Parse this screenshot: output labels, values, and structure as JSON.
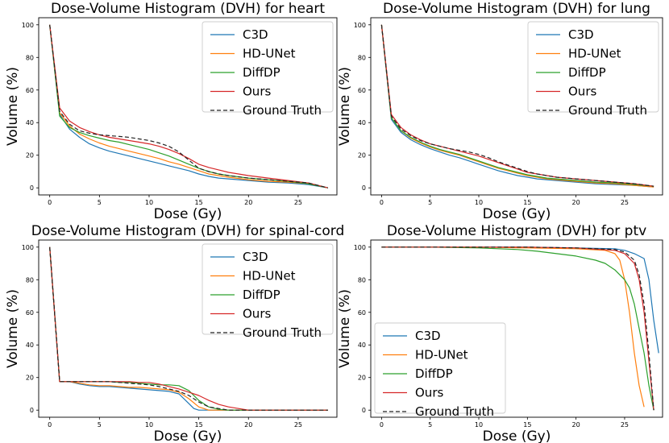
{
  "chart_data": [
    {
      "type": "line",
      "title": "Dose-Volume Histogram (DVH) for heart",
      "xlabel": "Dose (Gy)",
      "ylabel": "Volume (%)",
      "xlim": [
        0,
        28
      ],
      "ylim": [
        0,
        100
      ],
      "xticks": [
        "0",
        "5",
        "10",
        "15",
        "20",
        "25"
      ],
      "yticks": [
        "0",
        "20",
        "40",
        "60",
        "80",
        "100"
      ],
      "legend_position": "top-right",
      "series": [
        {
          "name": "C3D",
          "color": "#1f77b4",
          "dash": "",
          "x": [
            0,
            1,
            2,
            3,
            4,
            5,
            6,
            7,
            8,
            9,
            10,
            11,
            12,
            13,
            14,
            15,
            16,
            17,
            18,
            20,
            22,
            24,
            26,
            28
          ],
          "y": [
            100,
            45,
            36,
            31,
            27,
            24.5,
            22.5,
            21,
            19.5,
            18,
            16.5,
            15,
            13.5,
            12,
            10.5,
            8.5,
            7,
            6,
            5.5,
            4.5,
            3.5,
            3,
            2,
            0
          ]
        },
        {
          "name": "HD-UNet",
          "color": "#ff7f0e",
          "dash": "",
          "x": [
            0,
            1,
            2,
            3,
            4,
            5,
            6,
            7,
            8,
            9,
            10,
            11,
            12,
            13,
            14,
            15,
            16,
            17,
            18,
            20,
            22,
            24,
            26,
            28
          ],
          "y": [
            100,
            46,
            38,
            33,
            30,
            27.5,
            25.5,
            24,
            22.5,
            21,
            19.5,
            18,
            16,
            14.5,
            12.5,
            10.5,
            8.5,
            7.5,
            6.5,
            5,
            4,
            3.5,
            2.5,
            0
          ]
        },
        {
          "name": "DiffDP",
          "color": "#2ca02c",
          "dash": "",
          "x": [
            0,
            1,
            2,
            3,
            4,
            5,
            6,
            7,
            8,
            9,
            10,
            11,
            12,
            13,
            14,
            15,
            16,
            17,
            18,
            20,
            22,
            24,
            26,
            28
          ],
          "y": [
            100,
            44,
            37,
            34,
            32,
            30.5,
            29,
            28,
            26.5,
            25,
            23.5,
            21.5,
            19.5,
            17,
            14.5,
            12,
            10,
            8.5,
            7.5,
            6,
            5,
            4,
            2.5,
            0
          ]
        },
        {
          "name": "Ours",
          "color": "#d62728",
          "dash": "",
          "x": [
            0,
            1,
            2,
            3,
            4,
            5,
            6,
            7,
            8,
            9,
            10,
            11,
            12,
            13,
            14,
            15,
            16,
            17,
            18,
            20,
            22,
            24,
            26,
            28
          ],
          "y": [
            100,
            49,
            41,
            37,
            34.5,
            32.5,
            31,
            30,
            29,
            28,
            27,
            25.5,
            23.5,
            21,
            18,
            14.5,
            12.5,
            11,
            9.5,
            7.5,
            6,
            4.5,
            3,
            0
          ]
        },
        {
          "name": "Ground Truth",
          "color": "#222222",
          "dash": "5,3",
          "x": [
            0,
            1,
            2,
            3,
            4,
            5,
            6,
            7,
            8,
            9,
            10,
            11,
            12,
            13,
            14,
            15,
            16,
            17,
            18,
            20,
            22,
            24,
            26,
            28
          ],
          "y": [
            100,
            47,
            39,
            35,
            33.5,
            32.5,
            32,
            31.5,
            31,
            30,
            29,
            27.5,
            25.5,
            22,
            17,
            12,
            10,
            8.5,
            7.5,
            6,
            5,
            4,
            3,
            0
          ]
        }
      ]
    },
    {
      "type": "line",
      "title": "Dose-Volume Histogram (DVH) for lung",
      "xlabel": "Dose (Gy)",
      "ylabel": "Volume (%)",
      "xlim": [
        0,
        28
      ],
      "ylim": [
        0,
        100
      ],
      "xticks": [
        "0",
        "5",
        "10",
        "15",
        "20",
        "25"
      ],
      "yticks": [
        "0",
        "20",
        "40",
        "60",
        "80",
        "100"
      ],
      "legend_position": "top-right",
      "series": [
        {
          "name": "C3D",
          "color": "#1f77b4",
          "dash": "",
          "x": [
            0,
            1,
            2,
            3,
            4,
            5,
            6,
            7,
            8,
            9,
            10,
            11,
            12,
            13,
            14,
            15,
            16,
            17,
            18,
            20,
            22,
            24,
            26,
            28
          ],
          "y": [
            100,
            42,
            34,
            29.5,
            26.5,
            24,
            22,
            20,
            18.5,
            16.5,
            14.5,
            12.5,
            10.5,
            9,
            7.5,
            6.5,
            5.5,
            5,
            4.5,
            3.5,
            2.5,
            2,
            1.5,
            0.5
          ]
        },
        {
          "name": "HD-UNet",
          "color": "#ff7f0e",
          "dash": "",
          "x": [
            0,
            1,
            2,
            3,
            4,
            5,
            6,
            7,
            8,
            9,
            10,
            11,
            12,
            13,
            14,
            15,
            16,
            17,
            18,
            20,
            22,
            24,
            26,
            28
          ],
          "y": [
            100,
            43,
            35,
            30.5,
            27.5,
            25,
            23,
            21.5,
            20,
            18,
            16,
            14,
            12,
            10.5,
            9,
            7.5,
            6.5,
            5.5,
            5,
            4,
            3,
            2.5,
            1.5,
            0.5
          ]
        },
        {
          "name": "DiffDP",
          "color": "#2ca02c",
          "dash": "",
          "x": [
            0,
            1,
            2,
            3,
            4,
            5,
            6,
            7,
            8,
            9,
            10,
            11,
            12,
            13,
            14,
            15,
            16,
            17,
            18,
            20,
            22,
            24,
            26,
            28
          ],
          "y": [
            100,
            43,
            35,
            31,
            28,
            25.5,
            23.5,
            22,
            20.5,
            18.5,
            16.5,
            14.5,
            12.5,
            11,
            9.5,
            8,
            7,
            6,
            5.5,
            4.5,
            3.5,
            3,
            2,
            1
          ]
        },
        {
          "name": "Ours",
          "color": "#d62728",
          "dash": "",
          "x": [
            0,
            1,
            2,
            3,
            4,
            5,
            6,
            7,
            8,
            9,
            10,
            11,
            12,
            13,
            14,
            15,
            16,
            17,
            18,
            20,
            22,
            24,
            26,
            28
          ],
          "y": [
            100,
            45,
            37,
            32.5,
            29.5,
            27,
            25.5,
            24,
            22.5,
            21,
            19.5,
            17.5,
            15.5,
            13.5,
            11.5,
            9.5,
            8.5,
            7.5,
            6.5,
            5.5,
            4.5,
            3.5,
            2.5,
            1
          ]
        },
        {
          "name": "Ground Truth",
          "color": "#222222",
          "dash": "5,3",
          "x": [
            0,
            1,
            2,
            3,
            4,
            5,
            6,
            7,
            8,
            9,
            10,
            11,
            12,
            13,
            14,
            15,
            16,
            17,
            18,
            20,
            22,
            24,
            26,
            28
          ],
          "y": [
            100,
            44,
            36,
            32,
            29,
            27,
            25.5,
            24,
            23,
            22,
            20.5,
            18.5,
            16,
            14,
            12,
            10,
            8.5,
            7.5,
            6.5,
            5.5,
            4.5,
            3.5,
            2.5,
            1
          ]
        }
      ]
    },
    {
      "type": "line",
      "title": "Dose-Volume Histogram (DVH) for spinal-cord",
      "xlabel": "Dose (Gy)",
      "ylabel": "Volume (%)",
      "xlim": [
        0,
        28
      ],
      "ylim": [
        0,
        100
      ],
      "xticks": [
        "0",
        "5",
        "10",
        "15",
        "20",
        "25"
      ],
      "yticks": [
        "0",
        "20",
        "40",
        "60",
        "80",
        "100"
      ],
      "legend_position": "top-right",
      "series": [
        {
          "name": "C3D",
          "color": "#1f77b4",
          "dash": "",
          "x": [
            0,
            1,
            2,
            3,
            4,
            5,
            6,
            7,
            8,
            9,
            10,
            11,
            12,
            13,
            14,
            14.5,
            15,
            16,
            17,
            18,
            20,
            28
          ],
          "y": [
            100,
            17.5,
            17.5,
            16,
            15,
            14.5,
            14.5,
            14,
            13.5,
            13,
            12.5,
            12,
            11.5,
            10,
            4,
            1,
            0,
            0,
            0,
            0,
            0,
            0
          ]
        },
        {
          "name": "HD-UNet",
          "color": "#ff7f0e",
          "dash": "",
          "x": [
            0,
            1,
            2,
            3,
            4,
            5,
            6,
            7,
            8,
            9,
            10,
            11,
            12,
            13,
            14,
            15,
            16,
            17,
            18,
            20,
            28
          ],
          "y": [
            100,
            17.5,
            17.5,
            16.5,
            15.5,
            15,
            15,
            14.5,
            14,
            14,
            13.5,
            13,
            12.5,
            11,
            7,
            2,
            0,
            0,
            0,
            0,
            0
          ]
        },
        {
          "name": "DiffDP",
          "color": "#2ca02c",
          "dash": "",
          "x": [
            0,
            1,
            2,
            3,
            4,
            5,
            6,
            7,
            8,
            9,
            10,
            11,
            12,
            13,
            14,
            15,
            16,
            17,
            18,
            20,
            28
          ],
          "y": [
            100,
            17.5,
            17.5,
            17.5,
            17.5,
            17.5,
            17.5,
            17,
            17,
            16.5,
            16,
            15.5,
            15.5,
            15,
            12,
            6,
            2,
            0.5,
            0,
            0,
            0
          ]
        },
        {
          "name": "Ours",
          "color": "#d62728",
          "dash": "",
          "x": [
            0,
            1,
            2,
            3,
            4,
            5,
            6,
            7,
            8,
            9,
            10,
            11,
            12,
            13,
            14,
            15,
            16,
            17,
            18,
            19,
            20,
            28
          ],
          "y": [
            100,
            17.5,
            17.5,
            17.5,
            17.5,
            17.5,
            17.5,
            17.5,
            17.5,
            17,
            17,
            16,
            14.5,
            13,
            11,
            9,
            6,
            3.5,
            2,
            1,
            0,
            0
          ]
        },
        {
          "name": "Ground Truth",
          "color": "#222222",
          "dash": "5,3",
          "x": [
            0,
            1,
            2,
            3,
            4,
            5,
            6,
            7,
            8,
            9,
            10,
            11,
            12,
            13,
            14,
            15,
            16,
            17,
            18,
            20,
            28
          ],
          "y": [
            100,
            17.5,
            17.5,
            17.5,
            17.5,
            17.5,
            17.5,
            17,
            16.5,
            16,
            15.5,
            14.5,
            13,
            11.5,
            9,
            5,
            2,
            1,
            0,
            0,
            0
          ]
        }
      ]
    },
    {
      "type": "line",
      "title": "Dose-Volume Histogram (DVH) for ptv",
      "xlabel": "Dose (Gy)",
      "ylabel": "Volume (%)",
      "xlim": [
        0,
        28
      ],
      "ylim": [
        0,
        100
      ],
      "xticks": [
        "0",
        "5",
        "10",
        "15",
        "20",
        "25"
      ],
      "yticks": [
        "0",
        "20",
        "40",
        "60",
        "80",
        "100"
      ],
      "legend_position": "bottom-left",
      "series": [
        {
          "name": "C3D",
          "color": "#1f77b4",
          "dash": "",
          "x": [
            0,
            5,
            10,
            15,
            20,
            24,
            25,
            26,
            27,
            27.5,
            28,
            28.5
          ],
          "y": [
            100,
            100,
            100,
            100,
            99.5,
            99,
            98,
            96,
            93,
            80,
            55,
            35
          ]
        },
        {
          "name": "HD-UNet",
          "color": "#ff7f0e",
          "dash": "",
          "x": [
            0,
            5,
            10,
            15,
            20,
            23,
            24,
            24.5,
            25,
            25.5,
            26,
            26.5,
            27
          ],
          "y": [
            100,
            100,
            100,
            99.5,
            99,
            98,
            96,
            92,
            80,
            60,
            35,
            15,
            2
          ]
        },
        {
          "name": "DiffDP",
          "color": "#2ca02c",
          "dash": "",
          "x": [
            0,
            5,
            10,
            12,
            14,
            16,
            18,
            20,
            22,
            23,
            24,
            25,
            25.5,
            26,
            26.5,
            27,
            27.5,
            28
          ],
          "y": [
            100,
            100,
            99.5,
            99,
            98.5,
            97.5,
            96,
            94.5,
            92,
            90,
            86,
            80,
            75,
            65,
            50,
            35,
            15,
            0
          ]
        },
        {
          "name": "Ours",
          "color": "#d62728",
          "dash": "",
          "x": [
            0,
            5,
            10,
            15,
            20,
            24,
            25,
            26,
            26.5,
            27,
            27.5,
            28
          ],
          "y": [
            100,
            100,
            100,
            100,
            99.5,
            98,
            96,
            90,
            80,
            60,
            30,
            0
          ]
        },
        {
          "name": "Ground Truth",
          "color": "#222222",
          "dash": "5,3",
          "x": [
            0,
            5,
            10,
            15,
            20,
            24,
            25,
            26,
            26.5,
            27,
            27.5,
            28
          ],
          "y": [
            100,
            100,
            100,
            100,
            99.5,
            98.5,
            97,
            92,
            83,
            65,
            35,
            0
          ]
        }
      ]
    }
  ]
}
